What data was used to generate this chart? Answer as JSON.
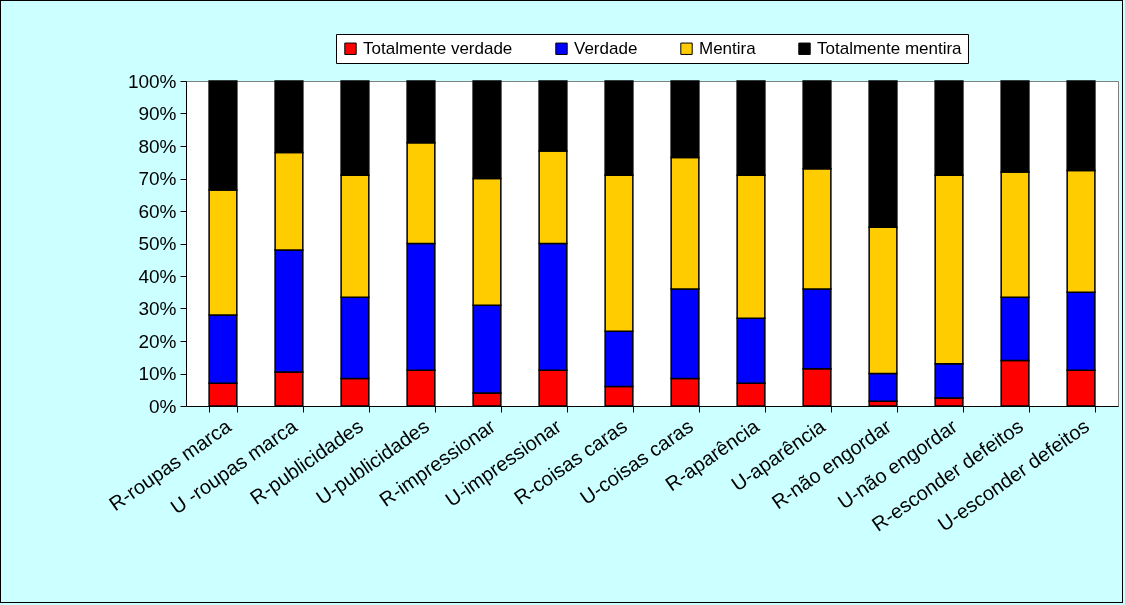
{
  "chart_data": {
    "type": "bar",
    "stacked": true,
    "categories": [
      "R-roupas  marca",
      "U -roupas marca",
      "R-publicidades",
      "U-publicidades",
      "R-impressionar",
      "U-impressionar",
      "R-coisas caras",
      "U-coisas caras",
      "R-aparência",
      "U-aparência",
      "R-não engordar",
      "U-não engordar",
      "R-esconder defeitos",
      "U-esconder defeitos"
    ],
    "series": [
      {
        "name": "Totalmente verdade",
        "color": "#ff0000",
        "values": [
          7,
          10.5,
          8.5,
          11,
          4,
          11,
          6,
          8.5,
          7,
          11.5,
          1.5,
          2.5,
          14,
          11
        ]
      },
      {
        "name": "Verdade",
        "color": "#0000ff",
        "values": [
          21,
          37.5,
          25,
          39,
          27,
          39,
          17,
          27.5,
          20,
          24.5,
          8.5,
          10.5,
          19.5,
          24
        ]
      },
      {
        "name": "Mentira",
        "color": "#ffcc00",
        "values": [
          38.5,
          30,
          37.5,
          31,
          39,
          28.5,
          48,
          40.5,
          44,
          37,
          45,
          58,
          38.5,
          37.5
        ]
      },
      {
        "name": "Totalmente mentira",
        "color": "#000000",
        "values": [
          33.5,
          22,
          29,
          19,
          30,
          21.5,
          29,
          23.5,
          29,
          27,
          45,
          29,
          28,
          27.5
        ]
      }
    ],
    "ylim": [
      0,
      100
    ],
    "yticks": [
      {
        "value": 0,
        "label": "0%"
      },
      {
        "value": 10,
        "label": "10%"
      },
      {
        "value": 20,
        "label": "20%"
      },
      {
        "value": 30,
        "label": "30%"
      },
      {
        "value": 40,
        "label": "40%"
      },
      {
        "value": 50,
        "label": "50%"
      },
      {
        "value": 60,
        "label": "60%"
      },
      {
        "value": 70,
        "label": "70%"
      },
      {
        "value": 80,
        "label": "80%"
      },
      {
        "value": 90,
        "label": "90%"
      },
      {
        "value": 100,
        "label": "100%"
      }
    ],
    "grid": false,
    "legend": "top"
  }
}
